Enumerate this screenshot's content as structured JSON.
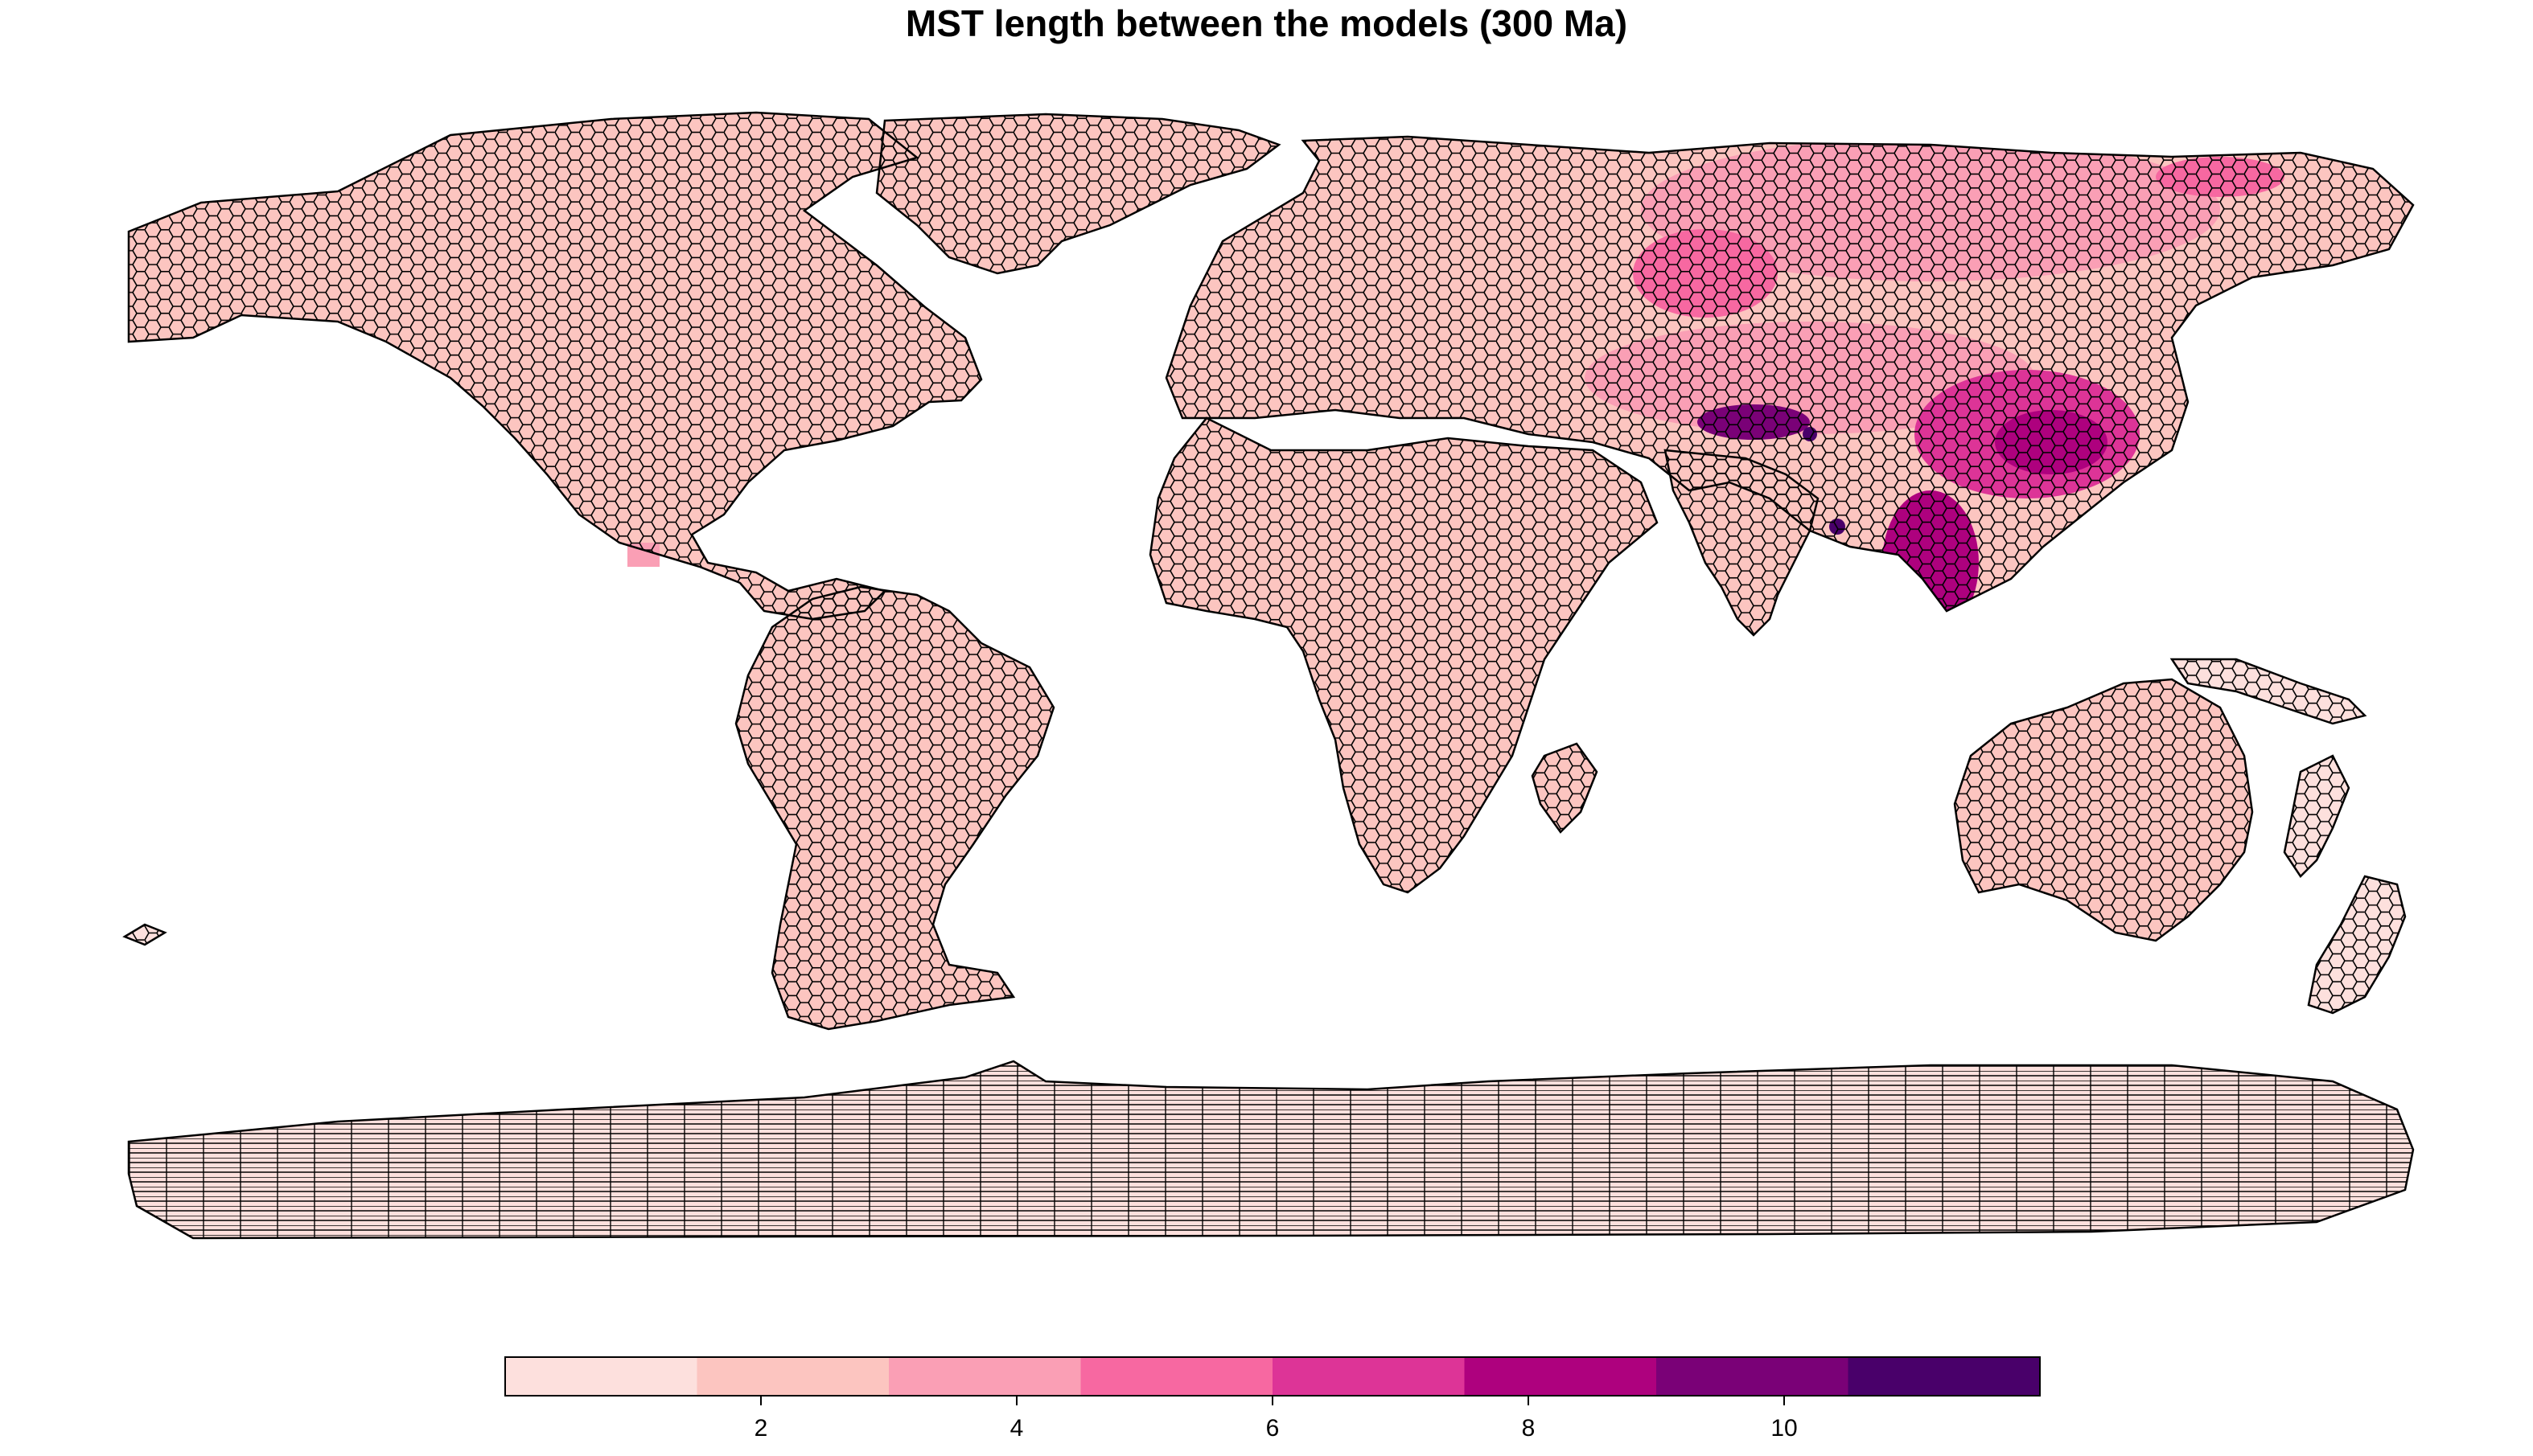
{
  "title": "MST length between the models (300 Ma)",
  "legend": {
    "breaks": [
      0,
      1.5,
      3,
      4.5,
      6,
      7.5,
      9,
      10.5,
      12
    ],
    "colors": [
      "#fde0dd",
      "#fcc5c0",
      "#fa9fb5",
      "#f768a1",
      "#dd3497",
      "#ae017e",
      "#7a0177",
      "#49006a"
    ],
    "tick_values": [
      2,
      4,
      6,
      8,
      10
    ],
    "tick_labels": [
      "2",
      "4",
      "6",
      "8",
      "10"
    ]
  },
  "colors": {
    "cell_outline": "#000000",
    "background": "#ffffff"
  },
  "chart_data": {
    "type": "heatmap",
    "title": "MST length between the models (300 Ma)",
    "value_range": [
      0,
      12
    ],
    "regions": [
      {
        "area": "North America",
        "value_class": 2
      },
      {
        "area": "South America",
        "value_class": 2
      },
      {
        "area": "Europe",
        "value_class": 2
      },
      {
        "area": "Africa",
        "value_class": 2
      },
      {
        "area": "Northern Siberia",
        "value_class": 4
      },
      {
        "area": "Central Asia",
        "value_class": 4
      },
      {
        "area": "China",
        "value_class": 6
      },
      {
        "area": "Southeast Asia",
        "value_class": 6
      },
      {
        "area": "India",
        "value_class": 2
      },
      {
        "area": "Australia",
        "value_class": 2
      },
      {
        "area": "Antarctica",
        "value_class": 1
      }
    ]
  }
}
